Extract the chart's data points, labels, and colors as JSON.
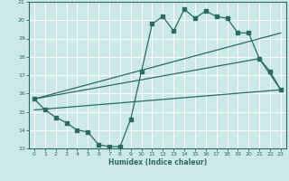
{
  "xlabel": "Humidex (Indice chaleur)",
  "bg_color": "#cde8e8",
  "grid_color": "#ffffff",
  "line_color": "#2a6b63",
  "xlim": [
    -0.5,
    23.5
  ],
  "ylim": [
    13,
    21
  ],
  "yticks": [
    13,
    14,
    15,
    16,
    17,
    18,
    19,
    20,
    21
  ],
  "xticks": [
    0,
    1,
    2,
    3,
    4,
    5,
    6,
    7,
    8,
    9,
    10,
    11,
    12,
    13,
    14,
    15,
    16,
    17,
    18,
    19,
    20,
    21,
    22,
    23
  ],
  "line1_x": [
    0,
    1,
    2,
    3,
    4,
    5,
    6,
    7,
    8,
    9,
    10,
    11,
    12,
    13,
    14,
    15,
    16,
    17,
    18,
    19,
    20,
    21,
    22,
    23
  ],
  "line1_y": [
    15.7,
    15.1,
    14.7,
    14.4,
    14.0,
    13.9,
    13.2,
    13.1,
    13.1,
    14.6,
    17.2,
    19.8,
    20.2,
    19.4,
    20.6,
    20.1,
    20.5,
    20.2,
    20.1,
    19.3,
    19.3,
    17.9,
    17.2,
    16.2
  ],
  "line2_x": [
    0,
    23
  ],
  "line2_y": [
    15.7,
    19.3
  ],
  "line3_x": [
    0,
    21,
    23
  ],
  "line3_y": [
    15.7,
    17.9,
    16.2
  ],
  "line4_x": [
    0,
    23
  ],
  "line4_y": [
    15.1,
    16.2
  ]
}
